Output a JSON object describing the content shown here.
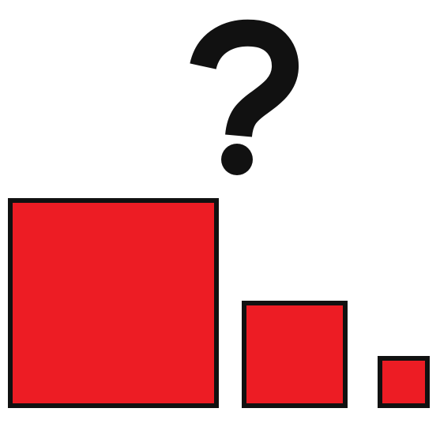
{
  "question_mark": {
    "glyph": "?",
    "icon": "question-mark-icon",
    "color": "#111111"
  },
  "squares": {
    "fill_color": "#ed1c24",
    "stroke_color": "#111111",
    "items": [
      {
        "name": "large",
        "relative_size": 1.0
      },
      {
        "name": "medium",
        "relative_size": 0.48
      },
      {
        "name": "small",
        "relative_size": 0.22
      }
    ]
  }
}
